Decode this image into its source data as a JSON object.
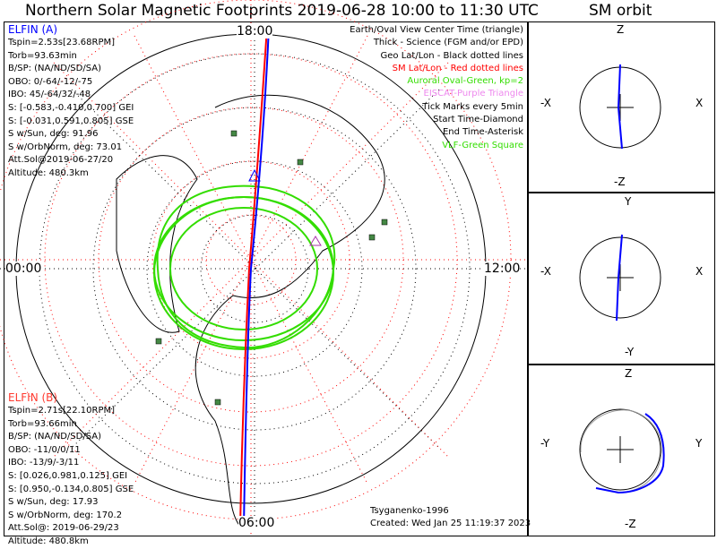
{
  "title": "Northern Solar Magnetic Footprints 2019-06-28 10:00 to 11:30 UTC",
  "sm_title": "SM orbit",
  "time_labels": {
    "top": "18:00",
    "left": "00:00",
    "right": "12:00",
    "bottom": "06:00"
  },
  "elfin_a": {
    "name": "ELFIN (A)",
    "color": "#0000ff",
    "lines": [
      "Tspin=2.53s[23.68RPM]",
      "Torb=93.63min",
      "B/SP: (NA/ND/SD/SA)",
      "OBO: 0/-64/-12/-75",
      "IBO: 45/-64/32/-48",
      "S: [-0.583,-0.410,0.700] GEI",
      "S: [-0.031,0.591,0.805] GSE",
      "S w/Sun, deg: 91.96",
      "S w/OrbNorm, deg: 73.01",
      "Att.Sol@2019-06-27/20",
      "Altitude: 480.3km"
    ]
  },
  "elfin_b": {
    "name": "ELFIN (B)",
    "color": "#ff3b30",
    "lines": [
      "Tspin=2.71s[22.10RPM]",
      "Torb=93.66min",
      "B/SP: (NA/ND/SD/SA)",
      "OBO: -11/0/0/11",
      "IBO: -13/9/-3/11",
      "S: [0.026,0.981,0.125] GEI",
      "S: [0.950,-0.134,0.805] GSE",
      "S w/Sun, deg: 17.93",
      "S w/OrbNorm, deg: 170.2",
      "Att.Sol@: 2019-06-29/23",
      "Altitude: 480.8km"
    ]
  },
  "legend": [
    {
      "text": "Earth/Oval View Center Time (triangle)",
      "color": "#000000"
    },
    {
      "text": "Thick - Science (FGM and/or EPD)",
      "color": "#000000"
    },
    {
      "text": "Geo Lat/Lon - Black dotted lines",
      "color": "#000000"
    },
    {
      "text": "SM Lat/Lon - Red dotted lines",
      "color": "#ff0000"
    },
    {
      "text": "Auroral Oval-Green, kp=2",
      "color": "#33dd00"
    },
    {
      "text": "EISCAT-Purple Triangle",
      "color": "#ee88ee"
    },
    {
      "text": "Tick Marks every 5min",
      "color": "#000000"
    },
    {
      "text": "Start Time-Diamond",
      "color": "#000000"
    },
    {
      "text": "End Time-Asterisk",
      "color": "#000000"
    },
    {
      "text": "VLF-Green Square",
      "color": "#33dd00"
    }
  ],
  "credit": "Tsyganenko-1996",
  "created": "Created: Wed Jan 25 11:19:37 2023",
  "sm_panels": [
    {
      "top": "Z",
      "bottom": "-Z",
      "left": "-X",
      "right": "X"
    },
    {
      "top": "Y",
      "bottom": "-Y",
      "left": "-X",
      "right": "X"
    },
    {
      "top": "Z",
      "bottom": "-Z",
      "left": "-Y",
      "right": "Y"
    }
  ]
}
